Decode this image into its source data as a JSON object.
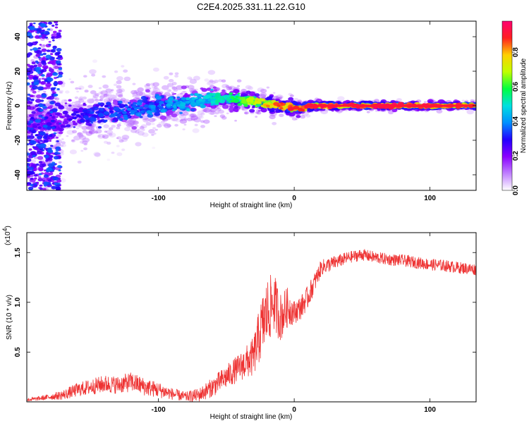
{
  "title": "C2E4.2025.331.11.22.G10",
  "colors": {
    "line": "#ee3333",
    "colormap": [
      "#ffffff",
      "#c080ff",
      "#8a00ff",
      "#2200ff",
      "#0090ff",
      "#00e0e0",
      "#00ff40",
      "#c0ff00",
      "#ffd000",
      "#ff2020",
      "#ff0070"
    ]
  },
  "chart_data": [
    {
      "type": "heatmap",
      "name": "spectrogram",
      "xlabel": "Height of straight line (km)",
      "ylabel": "Frequency (Hz)",
      "xlim": [
        -197,
        134
      ],
      "ylim": [
        -49,
        49
      ],
      "xticks": [
        -100,
        0,
        100
      ],
      "xtick_labels": [
        "-100",
        "0",
        "100"
      ],
      "yticks": [
        -40,
        -20,
        0,
        20,
        40
      ],
      "ytick_labels": [
        "-40",
        "-20",
        "0",
        "20",
        "40"
      ],
      "colorbar": {
        "label": "Normalized spectral amplitude",
        "range": [
          0,
          0.98
        ],
        "ticks": [
          0.0,
          0.2,
          0.4,
          0.6,
          0.8
        ],
        "tick_labels": [
          "0.0",
          "0.2",
          "0.4",
          "0.6",
          "0.8"
        ]
      },
      "ridge": {
        "x": [
          -197,
          -180,
          -160,
          -140,
          -120,
          -100,
          -80,
          -60,
          -40,
          -30,
          -20,
          -10,
          0,
          5,
          10,
          30,
          60,
          100,
          134
        ],
        "y": [
          -8,
          -10,
          -6,
          -4,
          -2,
          0,
          2,
          4,
          4,
          2,
          1,
          0,
          -1,
          -2,
          0,
          0,
          0,
          0,
          0
        ],
        "amplitude": [
          0.15,
          0.2,
          0.3,
          0.35,
          0.38,
          0.4,
          0.45,
          0.5,
          0.6,
          0.7,
          0.8,
          0.85,
          0.88,
          0.9,
          0.9,
          0.92,
          0.93,
          0.9,
          0.85
        ]
      }
    },
    {
      "type": "line",
      "name": "snr",
      "xlabel": "Height of straight line (km)",
      "ylabel": "SNR (10 * v/v)",
      "y_multiplier": "(x10",
      "y_multiplier_exp": "4",
      "y_multiplier_close": ")",
      "xlim": [
        -197,
        134
      ],
      "ylim": [
        0,
        1.7
      ],
      "xticks": [
        -100,
        0,
        100
      ],
      "xtick_labels": [
        "-100",
        "0",
        "100"
      ],
      "yticks": [
        0.5,
        1.0,
        1.5
      ],
      "ytick_labels": [
        "0.5",
        "1.0",
        "1.5"
      ],
      "series": [
        {
          "name": "SNR",
          "x": [
            -197,
            -190,
            -180,
            -170,
            -160,
            -150,
            -140,
            -130,
            -120,
            -110,
            -100,
            -90,
            -80,
            -70,
            -60,
            -50,
            -40,
            -30,
            -25,
            -20,
            -15,
            -10,
            -5,
            0,
            5,
            10,
            15,
            20,
            30,
            40,
            50,
            60,
            70,
            80,
            90,
            100,
            110,
            120,
            134
          ],
          "y": [
            0.02,
            0.03,
            0.05,
            0.07,
            0.12,
            0.15,
            0.18,
            0.17,
            0.2,
            0.15,
            0.12,
            0.08,
            0.05,
            0.07,
            0.15,
            0.25,
            0.35,
            0.45,
            0.7,
            0.9,
            1.0,
            0.85,
            0.95,
            0.9,
            0.95,
            1.05,
            1.2,
            1.35,
            1.4,
            1.45,
            1.48,
            1.45,
            1.43,
            1.42,
            1.4,
            1.38,
            1.37,
            1.35,
            1.33
          ],
          "noise": [
            0.02,
            0.02,
            0.03,
            0.05,
            0.07,
            0.08,
            0.09,
            0.09,
            0.1,
            0.09,
            0.08,
            0.06,
            0.05,
            0.07,
            0.1,
            0.12,
            0.14,
            0.2,
            0.3,
            0.35,
            0.3,
            0.25,
            0.2,
            0.12,
            0.12,
            0.12,
            0.1,
            0.08,
            0.07,
            0.06,
            0.06,
            0.06,
            0.06,
            0.06,
            0.06,
            0.06,
            0.06,
            0.06,
            0.06
          ]
        }
      ]
    }
  ]
}
